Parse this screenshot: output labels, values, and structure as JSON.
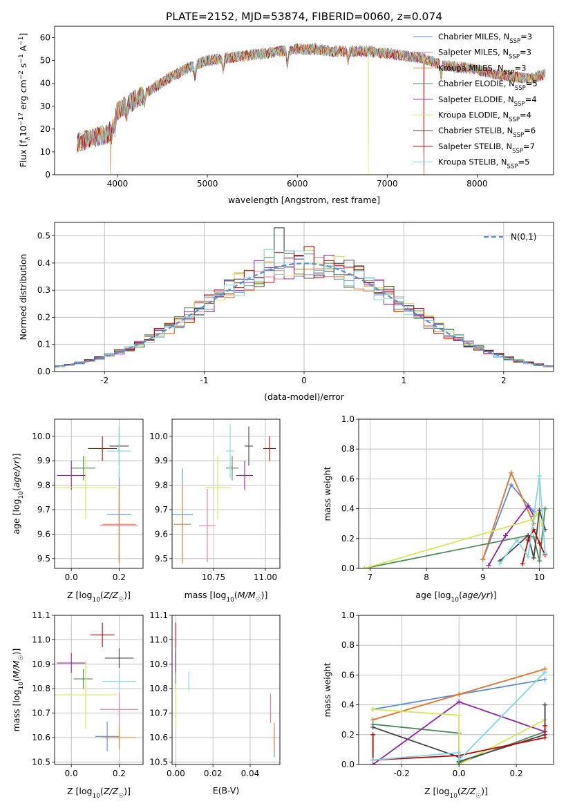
{
  "figure_title": "PLATE=2152, MJD=53874, FIBERID=0060, z=0.074",
  "models": [
    {
      "label": "Chabrier MILES, N",
      "nssp": "=3",
      "color": "#5b8bd6"
    },
    {
      "label": "Salpeter MILES, N",
      "nssp": "=3",
      "color": "#e87aa0"
    },
    {
      "label": "Kroupa MILES, N",
      "nssp": "=3",
      "color": "#e07b2a"
    },
    {
      "label": "Chabrier ELODIE, N",
      "nssp": "=5",
      "color": "#4e8a57"
    },
    {
      "label": "Salpeter ELODIE, N",
      "nssp": "=4",
      "color": "#8e24aa"
    },
    {
      "label": "Kroupa ELODIE, N",
      "nssp": "=4",
      "color": "#d4e84c"
    },
    {
      "label": "Chabrier STELIB, N",
      "nssp": "=6",
      "color": "#444444"
    },
    {
      "label": "Salpeter STELIB, N",
      "nssp": "=7",
      "color": "#c00000"
    },
    {
      "label": "Kroupa STELIB, N",
      "nssp": "=5",
      "color": "#7fd8e0"
    }
  ],
  "chart_data": [
    {
      "type": "line",
      "title": "PLATE=2152, MJD=53874, FIBERID=0060, z=0.074",
      "xlabel": "wavelength [Angstrom, rest frame]",
      "ylabel": "Flux [f",
      "xlim": [
        3300,
        8850
      ],
      "ylim": [
        0,
        65
      ],
      "xticks": [
        4000,
        5000,
        6000,
        7000,
        8000
      ],
      "yticks": [
        0,
        10,
        20,
        30,
        40,
        50,
        60
      ],
      "continuum_x": [
        3550,
        3700,
        3900,
        4000,
        4200,
        4400,
        4600,
        4800,
        5000,
        5200,
        5400,
        5600,
        5800,
        6000,
        6200,
        6400,
        6600,
        6800,
        7000,
        7200,
        7400,
        7600,
        7800,
        8000,
        8200,
        8400,
        8600,
        8750
      ],
      "continuum_y": [
        14,
        16,
        18,
        28,
        33,
        38,
        43,
        47,
        50,
        51,
        52,
        53,
        54,
        55,
        55,
        54,
        54,
        54,
        53,
        52,
        51,
        48,
        47,
        46,
        44,
        43,
        42,
        44
      ],
      "dropouts_x": [
        3920,
        6790,
        7410
      ]
    },
    {
      "type": "bar",
      "xlabel": "(data-model)/error",
      "ylabel": "Normed distribution",
      "xlim": [
        -2.5,
        2.5
      ],
      "ylim": [
        0,
        0.55
      ],
      "xticks": [
        -2,
        -1,
        0,
        1,
        2
      ],
      "yticks": [
        0.0,
        0.1,
        0.2,
        0.3,
        0.4,
        0.5
      ],
      "legend": "N(0,1)",
      "bin_width": 0.1,
      "peak_bins": [
        {
          "x": -0.2,
          "y": 0.53
        },
        {
          "x": 0.1,
          "y": 0.46
        },
        {
          "x": -0.3,
          "y": 0.45
        }
      ]
    },
    {
      "type": "scatter",
      "xlabel": "Z [log10(Z/Z☉)]",
      "ylabel": "age [log10(age/yr)]",
      "xlim": [
        -0.07,
        0.3
      ],
      "ylim": [
        9.46,
        10.07
      ],
      "xticks": [
        0.0,
        0.2
      ],
      "yticks": [
        9.5,
        9.6,
        9.7,
        9.8,
        9.9,
        10.0
      ],
      "points": [
        {
          "x": 0.2,
          "y": 9.68,
          "xe": 0.05,
          "ye": 0.19,
          "c": 0
        },
        {
          "x": 0.2,
          "y": 9.635,
          "xe": 0.08,
          "ye": 0.15,
          "c": 1
        },
        {
          "x": 0.2,
          "y": 9.64,
          "xe": 0.07,
          "ye": 0.16,
          "c": 2
        },
        {
          "x": 0.05,
          "y": 9.87,
          "xe": 0.05,
          "ye": 0.05,
          "c": 3
        },
        {
          "x": 0.0,
          "y": 9.84,
          "xe": 0.06,
          "ye": 0.06,
          "c": 4
        },
        {
          "x": 0.06,
          "y": 9.79,
          "xe": 0.13,
          "ye": 0.13,
          "c": 5
        },
        {
          "x": 0.2,
          "y": 9.96,
          "xe": 0.04,
          "ye": 0.08,
          "c": 6
        },
        {
          "x": 0.13,
          "y": 9.95,
          "xe": 0.06,
          "ye": 0.05,
          "c": 7
        },
        {
          "x": 0.2,
          "y": 9.94,
          "xe": 0.05,
          "ye": 0.11,
          "c": 8
        }
      ]
    },
    {
      "type": "scatter",
      "xlabel": "mass [log10(M/M☉)]",
      "xlim": [
        10.55,
        11.07
      ],
      "ylim": [
        9.46,
        10.07
      ],
      "xticks": [
        10.5,
        10.75,
        11.0
      ],
      "yticks": [
        9.5,
        9.6,
        9.7,
        9.8,
        9.9,
        10.0
      ],
      "points": [
        {
          "x": 10.6,
          "y": 9.68,
          "xe": 0.05,
          "ye": 0.19,
          "c": 0
        },
        {
          "x": 10.72,
          "y": 9.635,
          "xe": 0.04,
          "ye": 0.15,
          "c": 1
        },
        {
          "x": 10.6,
          "y": 9.64,
          "xe": 0.04,
          "ye": 0.16,
          "c": 2
        },
        {
          "x": 10.84,
          "y": 9.87,
          "xe": 0.03,
          "ye": 0.05,
          "c": 3
        },
        {
          "x": 10.9,
          "y": 9.84,
          "xe": 0.04,
          "ye": 0.06,
          "c": 4
        },
        {
          "x": 10.77,
          "y": 9.79,
          "xe": 0.06,
          "ye": 0.13,
          "c": 5
        },
        {
          "x": 10.92,
          "y": 9.96,
          "xe": 0.02,
          "ye": 0.08,
          "c": 6
        },
        {
          "x": 11.02,
          "y": 9.95,
          "xe": 0.03,
          "ye": 0.05,
          "c": 7
        },
        {
          "x": 10.83,
          "y": 9.94,
          "xe": 0.02,
          "ye": 0.11,
          "c": 8
        }
      ]
    },
    {
      "type": "line",
      "xlabel": "age [log10(age/yr)]",
      "ylabel": "mass weight",
      "xlim": [
        6.8,
        10.25
      ],
      "ylim": [
        0.0,
        1.0
      ],
      "xticks": [
        7,
        8,
        9,
        10
      ],
      "yticks": [
        0.0,
        0.2,
        0.4,
        0.6,
        0.8,
        1.0
      ],
      "series": [
        {
          "c": 0,
          "x": [
            9.0,
            9.5,
            9.9
          ],
          "y": [
            0.06,
            0.56,
            0.38
          ]
        },
        {
          "c": 1,
          "x": [
            9.0,
            9.5,
            9.9
          ],
          "y": [
            0.06,
            0.64,
            0.3
          ]
        },
        {
          "c": 2,
          "x": [
            9.0,
            9.5,
            9.9
          ],
          "y": [
            0.06,
            0.64,
            0.3
          ]
        },
        {
          "c": 3,
          "x": [
            6.9,
            9.8,
            9.9,
            10.0,
            10.1
          ],
          "y": [
            0.0,
            0.22,
            0.21,
            0.05,
            0.4
          ]
        },
        {
          "c": 4,
          "x": [
            9.1,
            9.4,
            9.8,
            9.9
          ],
          "y": [
            0.02,
            0.22,
            0.42,
            0.35
          ]
        },
        {
          "c": 5,
          "x": [
            6.9,
            9.9,
            9.95,
            10.05
          ],
          "y": [
            0.0,
            0.33,
            0.37,
            0.29
          ]
        },
        {
          "c": 6,
          "x": [
            9.3,
            9.8,
            9.9,
            10.0,
            10.1
          ],
          "y": [
            0.05,
            0.22,
            0.07,
            0.39,
            0.26
          ]
        },
        {
          "c": 7,
          "x": [
            9.7,
            9.8,
            9.9,
            10.0,
            10.1
          ],
          "y": [
            0.03,
            0.19,
            0.26,
            0.17,
            0.09
          ]
        },
        {
          "c": 8,
          "x": [
            9.3,
            9.6,
            9.8,
            10.0,
            10.1
          ],
          "y": [
            0.03,
            0.19,
            0.08,
            0.62,
            0.1
          ]
        }
      ]
    },
    {
      "type": "scatter",
      "xlabel": "Z [log10(Z/Z☉)]",
      "ylabel": "mass [log10(M/M☉)]",
      "xlim": [
        -0.07,
        0.3
      ],
      "ylim": [
        10.49,
        11.1
      ],
      "xticks": [
        0.0,
        0.2
      ],
      "yticks": [
        10.5,
        10.6,
        10.7,
        10.8,
        10.9,
        11.0,
        11.1
      ],
      "points": [
        {
          "x": 0.15,
          "y": 10.605,
          "xe": 0.05,
          "ye": 0.06,
          "c": 0
        },
        {
          "x": 0.2,
          "y": 10.715,
          "xe": 0.08,
          "ye": 0.07,
          "c": 1
        },
        {
          "x": 0.2,
          "y": 10.6,
          "xe": 0.07,
          "ye": 0.05,
          "c": 2
        },
        {
          "x": 0.05,
          "y": 10.84,
          "xe": 0.04,
          "ye": 0.04,
          "c": 3
        },
        {
          "x": 0.0,
          "y": 10.905,
          "xe": 0.06,
          "ye": 0.04,
          "c": 4
        },
        {
          "x": 0.06,
          "y": 10.775,
          "xe": 0.13,
          "ye": 0.14,
          "c": 5
        },
        {
          "x": 0.2,
          "y": 10.925,
          "xe": 0.06,
          "ye": 0.04,
          "c": 6
        },
        {
          "x": 0.13,
          "y": 11.02,
          "xe": 0.05,
          "ye": 0.05,
          "c": 7
        },
        {
          "x": 0.2,
          "y": 10.83,
          "xe": 0.07,
          "ye": 0.04,
          "c": 8
        }
      ]
    },
    {
      "type": "scatter",
      "xlabel": "E(B-V)",
      "xlim": [
        -0.002,
        0.056
      ],
      "ylim": [
        10.49,
        11.1
      ],
      "xticks": [
        0.0,
        0.02,
        0.04
      ],
      "yticks": [
        10.5,
        10.6,
        10.7,
        10.8,
        10.9,
        11.0,
        11.1
      ],
      "points": [
        {
          "x": 0.053,
          "y": 10.58,
          "xe": 0,
          "ye": 0.06,
          "c": 0
        },
        {
          "x": 0.051,
          "y": 10.72,
          "xe": 0,
          "ye": 0.06,
          "c": 1
        },
        {
          "x": 0.053,
          "y": 10.6,
          "xe": 0,
          "ye": 0.06,
          "c": 2
        },
        {
          "x": 0.0,
          "y": 10.84,
          "xe": 0,
          "ye": 0.04,
          "c": 3
        },
        {
          "x": 0.0,
          "y": 10.905,
          "xe": 0,
          "ye": 0.04,
          "c": 4
        },
        {
          "x": 0.0,
          "y": 10.73,
          "xe": 0,
          "ye": 0.09,
          "c": 5
        },
        {
          "x": 0.0,
          "y": 10.925,
          "xe": 0,
          "ye": 0.05,
          "c": 6
        },
        {
          "x": 0.0,
          "y": 11.02,
          "xe": 0,
          "ye": 0.05,
          "c": 7
        },
        {
          "x": 0.007,
          "y": 10.83,
          "xe": 0,
          "ye": 0.04,
          "c": 8
        }
      ]
    },
    {
      "type": "line",
      "xlabel": "Z [log10(Z/Z☉)]",
      "ylabel": "mass weight",
      "xlim": [
        -0.35,
        0.33
      ],
      "ylim": [
        0.0,
        1.0
      ],
      "xticks": [
        -0.2,
        0.0,
        0.2
      ],
      "yticks": [
        0.0,
        0.2,
        0.4,
        0.6,
        0.8,
        1.0
      ],
      "series": [
        {
          "c": 0,
          "x": [
            -0.3,
            0.0,
            0.3
          ],
          "y": [
            0.37,
            0.47,
            0.57
          ]
        },
        {
          "c": 1,
          "x": [
            -0.3,
            0.0,
            0.3
          ],
          "y": [
            0.3,
            0.47,
            0.64
          ]
        },
        {
          "c": 2,
          "x": [
            -0.3,
            0.0,
            0.3
          ],
          "y": [
            0.3,
            0.47,
            0.64
          ]
        },
        {
          "c": 3,
          "x": [
            -0.3,
            0.0,
            0.0,
            0.3,
            0.3
          ],
          "y": [
            0.27,
            0.21,
            0.01,
            0.22,
            0.4
          ]
        },
        {
          "c": 4,
          "x": [
            -0.3,
            0.0,
            0.3
          ],
          "y": [
            0.0,
            0.42,
            0.22
          ]
        },
        {
          "c": 5,
          "x": [
            -0.3,
            0.0,
            0.0,
            0.3
          ],
          "y": [
            0.37,
            0.33,
            0.0,
            0.3
          ]
        },
        {
          "c": 6,
          "x": [
            -0.3,
            0.0,
            0.0,
            0.3,
            0.3
          ],
          "y": [
            0.25,
            0.05,
            0.02,
            0.2,
            0.4
          ]
        },
        {
          "c": 7,
          "x": [
            -0.3,
            -0.3,
            0.0,
            0.3,
            0.3
          ],
          "y": [
            0.2,
            0.03,
            0.06,
            0.18,
            0.26
          ]
        },
        {
          "c": 8,
          "x": [
            -0.3,
            0.0,
            0.0,
            0.3
          ],
          "y": [
            0.03,
            0.08,
            0.03,
            0.62
          ]
        }
      ]
    }
  ]
}
